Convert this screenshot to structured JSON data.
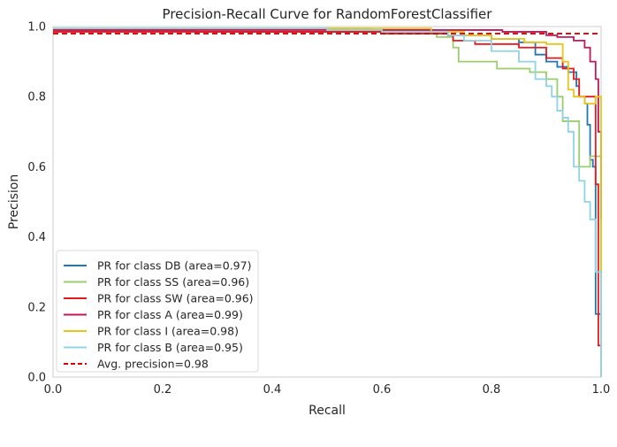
{
  "chart_data": {
    "type": "line",
    "title": "Precision-Recall Curve for RandomForestClassifier",
    "xlabel": "Recall",
    "ylabel": "Precision",
    "xlim": [
      0,
      1
    ],
    "ylim": [
      0,
      1
    ],
    "xticks": [
      "0.0",
      "0.2",
      "0.4",
      "0.6",
      "0.8",
      "1.0"
    ],
    "yticks": [
      "0.0",
      "0.2",
      "0.4",
      "0.6",
      "0.8",
      "1.0"
    ],
    "grid": false,
    "legend_position": "lower-left",
    "series": [
      {
        "name": "PR for class DB (area=0.97)",
        "color": "#1f77b4",
        "points": [
          [
            0,
            0.99
          ],
          [
            0.25,
            0.99
          ],
          [
            0.26,
            0.985
          ],
          [
            0.6,
            0.985
          ],
          [
            0.72,
            0.975
          ],
          [
            0.8,
            0.965
          ],
          [
            0.85,
            0.955
          ],
          [
            0.88,
            0.92
          ],
          [
            0.9,
            0.9
          ],
          [
            0.92,
            0.885
          ],
          [
            0.94,
            0.87
          ],
          [
            0.955,
            0.83
          ],
          [
            0.96,
            0.8
          ],
          [
            0.97,
            0.78
          ],
          [
            0.975,
            0.72
          ],
          [
            0.98,
            0.62
          ],
          [
            0.985,
            0.6
          ],
          [
            0.99,
            0.18
          ],
          [
            1.0,
            0.18
          ]
        ]
      },
      {
        "name": "PR for class SS (area=0.96)",
        "color": "#9acd6b",
        "points": [
          [
            0,
            0.995
          ],
          [
            0.55,
            0.995
          ],
          [
            0.58,
            0.985
          ],
          [
            0.7,
            0.97
          ],
          [
            0.73,
            0.94
          ],
          [
            0.74,
            0.9
          ],
          [
            0.8,
            0.9
          ],
          [
            0.81,
            0.88
          ],
          [
            0.87,
            0.87
          ],
          [
            0.9,
            0.85
          ],
          [
            0.92,
            0.8
          ],
          [
            0.93,
            0.73
          ],
          [
            0.95,
            0.73
          ],
          [
            0.96,
            0.6
          ],
          [
            0.98,
            0.63
          ],
          [
            0.99,
            0.63
          ],
          [
            1.0,
            0.03
          ]
        ]
      },
      {
        "name": "PR for class SW (area=0.96)",
        "color": "#e41a1c",
        "points": [
          [
            0,
            0.985
          ],
          [
            0.55,
            0.985
          ],
          [
            0.6,
            0.98
          ],
          [
            0.72,
            0.975
          ],
          [
            0.73,
            0.96
          ],
          [
            0.77,
            0.95
          ],
          [
            0.85,
            0.94
          ],
          [
            0.9,
            0.91
          ],
          [
            0.93,
            0.88
          ],
          [
            0.95,
            0.85
          ],
          [
            0.96,
            0.8
          ],
          [
            0.98,
            0.8
          ],
          [
            0.99,
            0.55
          ],
          [
            0.995,
            0.09
          ],
          [
            1.0,
            0.09
          ]
        ]
      },
      {
        "name": "PR for class A (area=0.99)",
        "color": "#c2185b",
        "points": [
          [
            0,
            0.99
          ],
          [
            0.8,
            0.99
          ],
          [
            0.82,
            0.985
          ],
          [
            0.9,
            0.975
          ],
          [
            0.92,
            0.97
          ],
          [
            0.95,
            0.96
          ],
          [
            0.97,
            0.94
          ],
          [
            0.98,
            0.9
          ],
          [
            0.99,
            0.85
          ],
          [
            0.995,
            0.7
          ],
          [
            1.0,
            0.45
          ]
        ]
      },
      {
        "name": "PR for class I (area=0.98)",
        "color": "#e6c619",
        "points": [
          [
            0,
            0.995
          ],
          [
            0.68,
            0.995
          ],
          [
            0.69,
            0.985
          ],
          [
            0.75,
            0.975
          ],
          [
            0.8,
            0.965
          ],
          [
            0.86,
            0.955
          ],
          [
            0.9,
            0.95
          ],
          [
            0.93,
            0.9
          ],
          [
            0.94,
            0.82
          ],
          [
            0.95,
            0.8
          ],
          [
            0.96,
            0.8
          ],
          [
            0.97,
            0.78
          ],
          [
            0.98,
            0.78
          ],
          [
            0.99,
            0.8
          ],
          [
            1.0,
            0.0
          ]
        ]
      },
      {
        "name": "PR for class B (area=0.95)",
        "color": "#8fd3e6",
        "points": [
          [
            0,
            0.995
          ],
          [
            0.45,
            0.995
          ],
          [
            0.5,
            0.99
          ],
          [
            0.6,
            0.985
          ],
          [
            0.72,
            0.975
          ],
          [
            0.75,
            0.96
          ],
          [
            0.8,
            0.93
          ],
          [
            0.85,
            0.9
          ],
          [
            0.88,
            0.85
          ],
          [
            0.9,
            0.83
          ],
          [
            0.91,
            0.8
          ],
          [
            0.92,
            0.76
          ],
          [
            0.93,
            0.74
          ],
          [
            0.94,
            0.7
          ],
          [
            0.95,
            0.6
          ],
          [
            0.96,
            0.56
          ],
          [
            0.97,
            0.5
          ],
          [
            0.98,
            0.45
          ],
          [
            0.99,
            0.3
          ],
          [
            1.0,
            0.0
          ]
        ]
      }
    ],
    "reference": {
      "name": "Avg. precision=0.98",
      "color": "#e00000",
      "dashed": true,
      "y": 0.98
    }
  }
}
